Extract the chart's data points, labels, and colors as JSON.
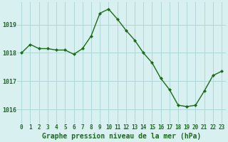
{
  "x": [
    0,
    1,
    2,
    3,
    4,
    5,
    6,
    7,
    8,
    9,
    10,
    11,
    12,
    13,
    14,
    15,
    16,
    17,
    18,
    19,
    20,
    21,
    22,
    23
  ],
  "y": [
    1018.0,
    1018.3,
    1018.15,
    1018.15,
    1018.1,
    1018.1,
    1017.95,
    1018.15,
    1018.6,
    1019.4,
    1019.55,
    1019.2,
    1018.8,
    1018.45,
    1018.0,
    1017.65,
    1017.1,
    1016.7,
    1016.15,
    1016.1,
    1016.15,
    1016.65,
    1017.2,
    1017.35
  ],
  "line_color": "#1a6b1a",
  "marker": "D",
  "marker_size": 2.0,
  "bg_color": "#d8f0f0",
  "grid_color": "#b0d8d8",
  "xlabel": "Graphe pression niveau de la mer (hPa)",
  "xlabel_color": "#1a6b1a",
  "ylim": [
    1015.5,
    1019.8
  ],
  "yticks": [
    1016,
    1017,
    1018,
    1019
  ],
  "xticks": [
    0,
    1,
    2,
    3,
    4,
    5,
    6,
    7,
    8,
    9,
    10,
    11,
    12,
    13,
    14,
    15,
    16,
    17,
    18,
    19,
    20,
    21,
    22,
    23
  ],
  "tick_label_color": "#1a6b1a",
  "xtick_label_size": 5.5,
  "ytick_label_size": 6.0,
  "xlabel_size": 7.0
}
